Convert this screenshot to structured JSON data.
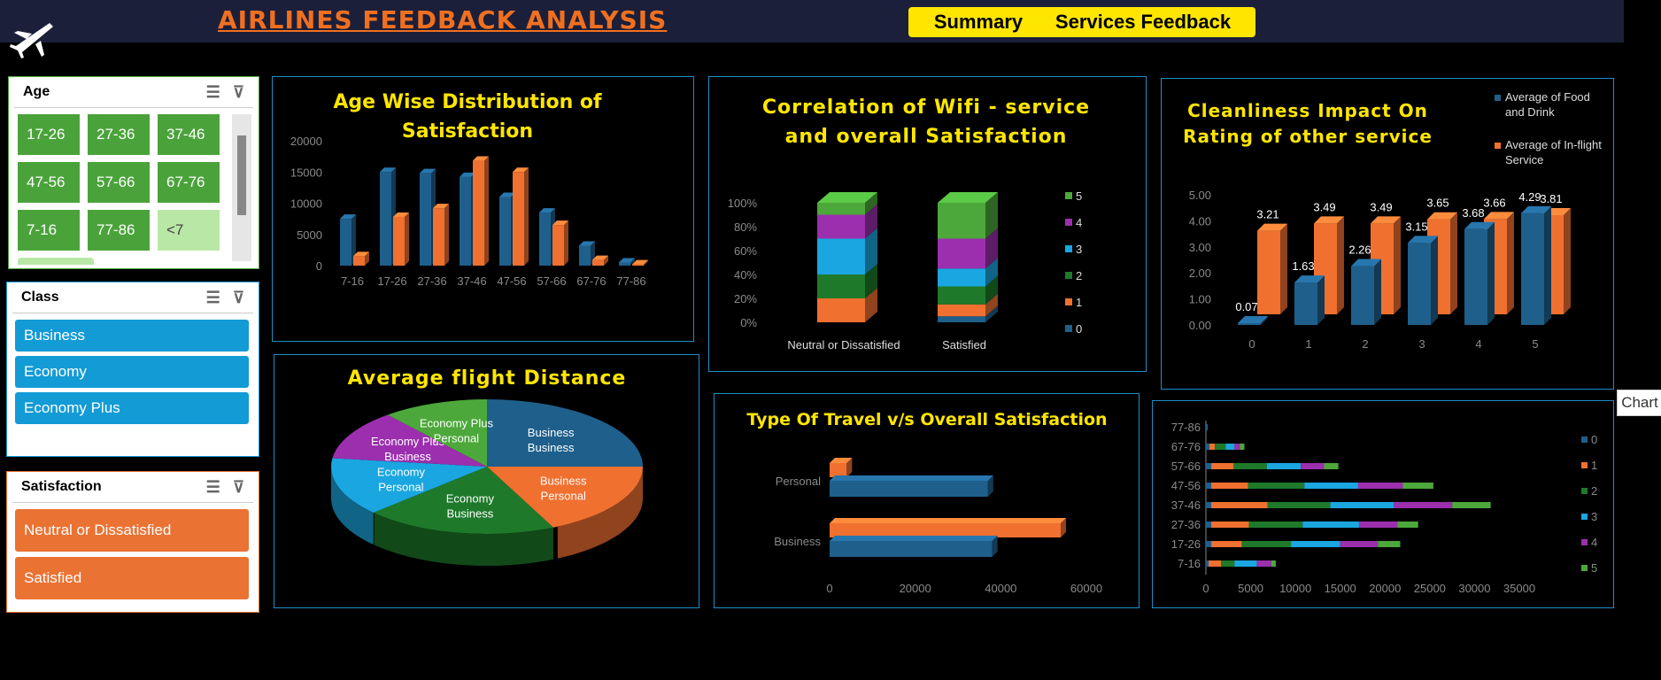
{
  "header": {
    "title": "AIRLINES FEEDBACK ANALYSIS",
    "nav": [
      "Summary",
      "Services Feedback"
    ]
  },
  "colors": {
    "blue": "#1f5f8b",
    "orange": "#f07030",
    "green": "#4ca83a",
    "purple": "#9b2fae",
    "cyan": "#1aa6e0",
    "dkgreen": "#1e7a2a",
    "yellow": "#ffe600",
    "slicer_green": "#4aa33a",
    "slicer_blue": "#139bd6",
    "slicer_orange": "#ea7233"
  },
  "slicers": {
    "age": {
      "title": "Age",
      "items": [
        "17-26",
        "27-36",
        "37-46",
        "47-56",
        "57-66",
        "67-76",
        "7-16",
        "77-86",
        "<7"
      ]
    },
    "class": {
      "title": "Class",
      "items": [
        "Business",
        "Economy",
        "Economy Plus"
      ]
    },
    "satisfaction": {
      "title": "Satisfaction",
      "items": [
        "Neutral or Dissatisfied",
        "Satisfied"
      ]
    }
  },
  "tooltip": "Chart",
  "chart_data": [
    {
      "id": "age",
      "type": "bar",
      "title": "Age Wise Distribution of Satisfaction",
      "categories": [
        "7-16",
        "17-26",
        "27-36",
        "37-46",
        "47-56",
        "57-66",
        "67-76",
        "77-86"
      ],
      "series": [
        {
          "values": [
            7500,
            15000,
            14800,
            14200,
            11000,
            8500,
            3200,
            500
          ]
        },
        {
          "values": [
            1500,
            7800,
            9200,
            16800,
            15000,
            6500,
            900,
            200
          ]
        }
      ],
      "ylim": [
        0,
        20000
      ],
      "yticks": [
        "20000",
        "15000",
        "10000",
        "5000",
        "0"
      ]
    },
    {
      "id": "wifi",
      "type": "bar",
      "title": "Correlation of Wifi - service and overall Satisfaction",
      "categories": [
        "Neutral or Dissatisfied",
        "Satisfied"
      ],
      "legend": [
        "5",
        "4",
        "3",
        "2",
        "1",
        "0"
      ],
      "yticks": [
        "100%",
        "80%",
        "60%",
        "40%",
        "20%",
        "0%"
      ],
      "stacks": [
        [
          0,
          20,
          20,
          30,
          20,
          10
        ],
        [
          5,
          10,
          15,
          15,
          25,
          30
        ]
      ]
    },
    {
      "id": "clean",
      "type": "bar",
      "title": "Cleanliness Impact On Rating of other service",
      "categories": [
        "0",
        "1",
        "2",
        "3",
        "4",
        "5"
      ],
      "series": [
        {
          "name": "Average of Food and Drink",
          "values": [
            0.07,
            1.63,
            2.26,
            3.15,
            3.68,
            4.29
          ]
        },
        {
          "name": "Average of In-flight Service",
          "values": [
            3.21,
            3.49,
            3.49,
            3.65,
            3.66,
            3.81
          ]
        }
      ],
      "labels_blue": [
        "0.07",
        "1.63",
        "2.26",
        "3.15",
        "3.68",
        "4.29"
      ],
      "labels_orange": [
        "3.21",
        "3.49",
        "3.49",
        "3.65",
        "3.66",
        "3.81"
      ],
      "ylim": [
        0,
        5
      ],
      "yticks": [
        "5.00",
        "4.00",
        "3.00",
        "2.00",
        "1.00",
        "0.00"
      ]
    },
    {
      "id": "distance",
      "type": "pie",
      "title": "Average flight Distance",
      "slices": [
        {
          "label": "Business Business",
          "value": 25
        },
        {
          "label": "Business Personal",
          "value": 18
        },
        {
          "label": "Economy Business",
          "value": 20
        },
        {
          "label": "Economy Personal",
          "value": 14
        },
        {
          "label": "Economy Plus Business",
          "value": 12
        },
        {
          "label": "Economy Plus Personal",
          "value": 11
        }
      ]
    },
    {
      "id": "travel",
      "type": "bar",
      "title": "Type Of Travel v/s Overall Satisfaction",
      "categories": [
        "Personal",
        "Business"
      ],
      "series": [
        {
          "values": [
            37000,
            38000
          ]
        },
        {
          "values": [
            4000,
            54000
          ]
        }
      ],
      "xticks": [
        "0",
        "20000",
        "40000",
        "60000"
      ],
      "xlim": [
        0,
        60000
      ]
    },
    {
      "id": "stacked",
      "type": "bar",
      "categories": [
        "77-86",
        "67-76",
        "57-66",
        "47-56",
        "37-46",
        "27-36",
        "17-26",
        "7-16"
      ],
      "legend": [
        "0",
        "1",
        "2",
        "3",
        "4",
        "5"
      ],
      "xticks": [
        "0",
        "5000",
        "10000",
        "15000",
        "20000",
        "25000",
        "30000",
        "35000"
      ],
      "xlim": [
        0,
        35000
      ],
      "stacks": [
        [
          200,
          0,
          0,
          0,
          0,
          0
        ],
        [
          400,
          600,
          1200,
          1000,
          600,
          500
        ],
        [
          600,
          2500,
          3700,
          3800,
          2600,
          1600
        ],
        [
          600,
          4100,
          6300,
          6000,
          5000,
          3400
        ],
        [
          600,
          6300,
          7000,
          7100,
          6500,
          4300
        ],
        [
          600,
          4200,
          6000,
          6300,
          4300,
          2300
        ],
        [
          600,
          3400,
          5500,
          5500,
          4200,
          2500
        ],
        [
          300,
          1400,
          1500,
          2500,
          1600,
          500
        ]
      ]
    }
  ]
}
